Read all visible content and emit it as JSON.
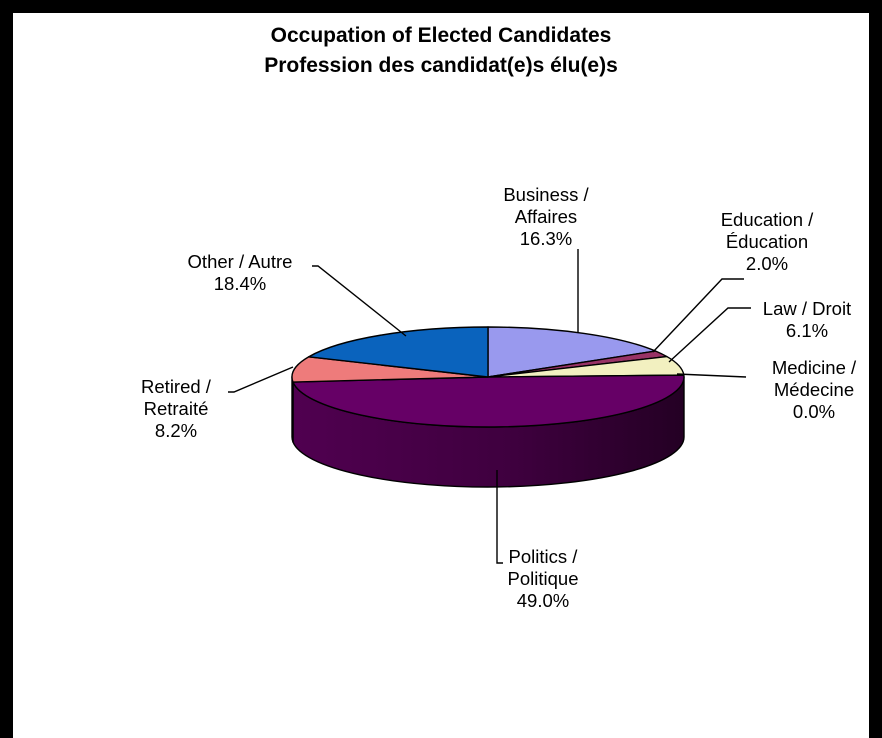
{
  "chart_data": {
    "type": "pie",
    "title": "Occupation of Elected Candidates",
    "subtitle": "Profession des candidat(e)s élu(e)s",
    "three_d": true,
    "slices": [
      {
        "label_lines": [
          "Business /",
          "Affaires"
        ],
        "value": 16.3,
        "value_label": "16.3%",
        "color": "#9999ee"
      },
      {
        "label_lines": [
          "Education /",
          "Éducation"
        ],
        "value": 2.0,
        "value_label": "2.0%",
        "color": "#993366"
      },
      {
        "label_lines": [
          "Law / Droit"
        ],
        "value": 6.1,
        "value_label": "6.1%",
        "color": "#f2f0c0"
      },
      {
        "label_lines": [
          "Medicine /",
          "Médecine"
        ],
        "value": 0.0,
        "value_label": "0.0%",
        "color": "#b9d3e6"
      },
      {
        "label_lines": [
          "Politics /",
          "Politique"
        ],
        "value": 49.0,
        "value_label": "49.0%",
        "color": "#660066"
      },
      {
        "label_lines": [
          "Retired /",
          "Retraité"
        ],
        "value": 8.2,
        "value_label": "8.2%",
        "color": "#ee7b7b"
      },
      {
        "label_lines": [
          "Other / Autre"
        ],
        "value": 18.4,
        "value_label": "18.4%",
        "color": "#0a63bd"
      }
    ]
  }
}
